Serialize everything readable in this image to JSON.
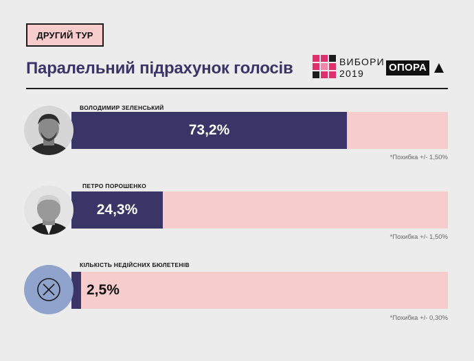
{
  "header": {
    "round_label": "ДРУГИЙ ТУР",
    "title": "Паралельний підрахунок голосів"
  },
  "logos": {
    "vybory_line1": "ВИБОРИ",
    "vybory_line2": "2019",
    "opora": "ОПОРА"
  },
  "colors": {
    "bar_fill": "#3b3466",
    "bar_background": "#f7cccc",
    "title": "#3b3466",
    "invalid_circle": "#8fa3cc"
  },
  "chart_data": {
    "type": "bar",
    "orientation": "horizontal",
    "title": "Паралельний підрахунок голосів",
    "xlim": [
      0,
      100
    ],
    "unit": "%",
    "categories": [
      "ВОЛОДИМИР ЗЕЛЕНСЬКИЙ",
      "ПЕТРО ПОРОШЕНКО",
      "КІЛЬКІСТЬ НЕДІЙСНИХ БЮЛЕТЕНІВ"
    ],
    "values": [
      73.2,
      24.3,
      2.5
    ],
    "value_labels": [
      "73,2%",
      "24,3%",
      "2,5%"
    ],
    "error_notes": [
      "*Похибка +/- 1,50%",
      "*Похибка +/- 1,50%",
      "*Похибка +/- 0,30%"
    ],
    "grid": false,
    "legend": "none"
  }
}
